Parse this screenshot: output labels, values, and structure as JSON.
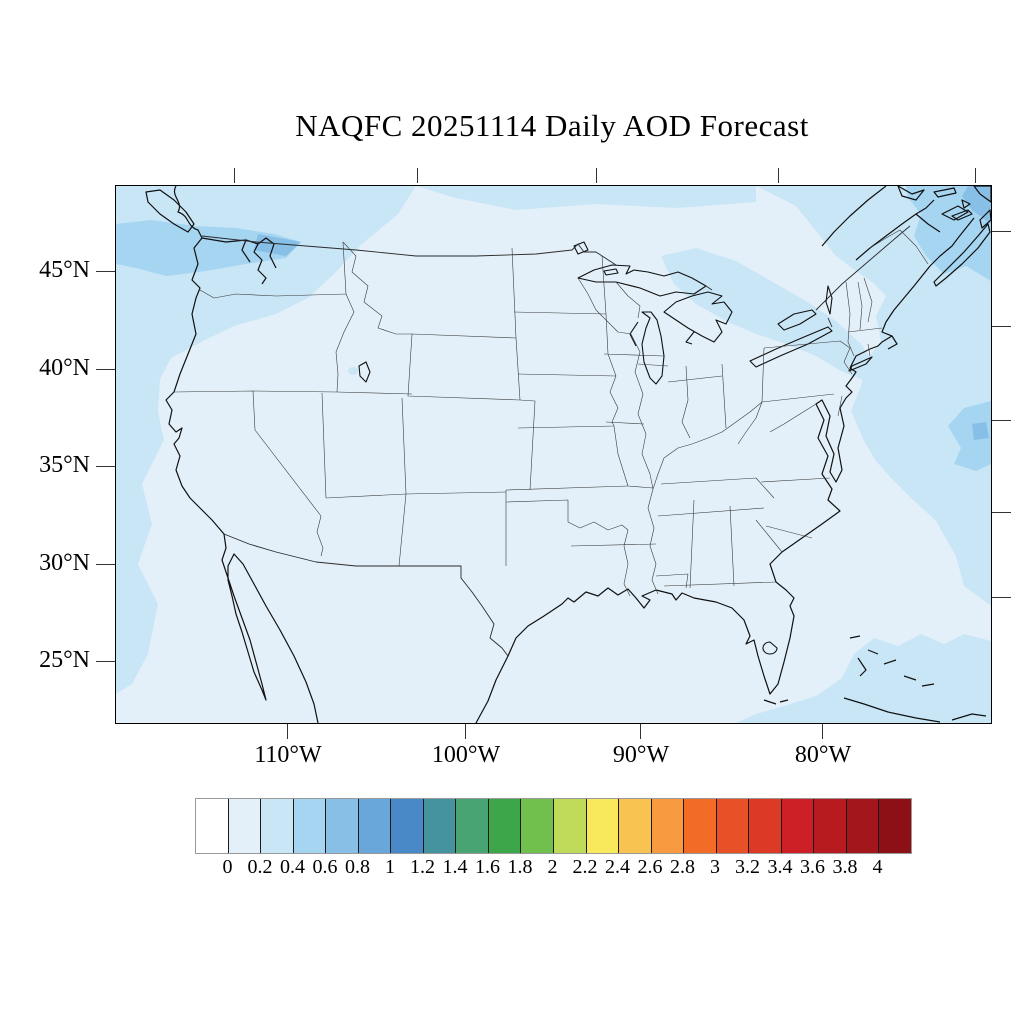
{
  "title": "NAQFC 20251114 Daily AOD Forecast",
  "map": {
    "lat_tick_labels": [
      "45°N",
      "40°N",
      "35°N",
      "30°N",
      "25°N"
    ],
    "lon_tick_labels": [
      "110°W",
      "100°W",
      "90°W",
      "80°W"
    ]
  },
  "colorbar": {
    "tick_labels": [
      "0",
      "0.2",
      "0.4",
      "0.6",
      "0.8",
      "1",
      "1.2",
      "1.4",
      "1.6",
      "1.8",
      "2",
      "2.2",
      "2.4",
      "2.6",
      "2.8",
      "3",
      "3.2",
      "3.4",
      "3.6",
      "3.8",
      "4"
    ],
    "cell_colors": [
      "#FFFFFF",
      "#E3F0F9",
      "#C9E6F7",
      "#A5D5F1",
      "#88BFE6",
      "#69A7DA",
      "#4A89C8",
      "#45939E",
      "#49A474",
      "#3EA64A",
      "#71C04E",
      "#C0DA59",
      "#F8E95C",
      "#F8C351",
      "#F89B40",
      "#F26B27",
      "#E85127",
      "#DC3A26",
      "#CD2026",
      "#B71B20",
      "#A3161B",
      "#8C1016"
    ]
  },
  "chart_data": {
    "type": "heatmap",
    "title": "NAQFC 20251114 Daily AOD Forecast",
    "variable": "Aerosol Optical Depth (AOD), dimensionless",
    "region": "Continental United States with adjacent Pacific, Atlantic and Gulf waters",
    "x_tick_labels": [
      "110°W",
      "100°W",
      "90°W",
      "80°W"
    ],
    "y_tick_labels": [
      "45°N",
      "40°N",
      "35°N",
      "30°N",
      "25°N"
    ],
    "colorbar_range": [
      0,
      4
    ],
    "colorbar_step": 0.2,
    "field_summary": "AOD is mostly 0–0.2 over the CONUS interior; 0.2–0.4 over the Pacific Northwest, the upper Great Lakes through New England/Canadian Maritimes, the northwest Atlantic and the Bahamas/Caribbean corner; local maxima 0.4–0.8 near Puget Sound, the Gulf of St. Lawrence (top-right corner) and offshore in the mid-Atlantic at the right edge",
    "grid": false,
    "legend_position": "bottom horizontal colorbar"
  }
}
